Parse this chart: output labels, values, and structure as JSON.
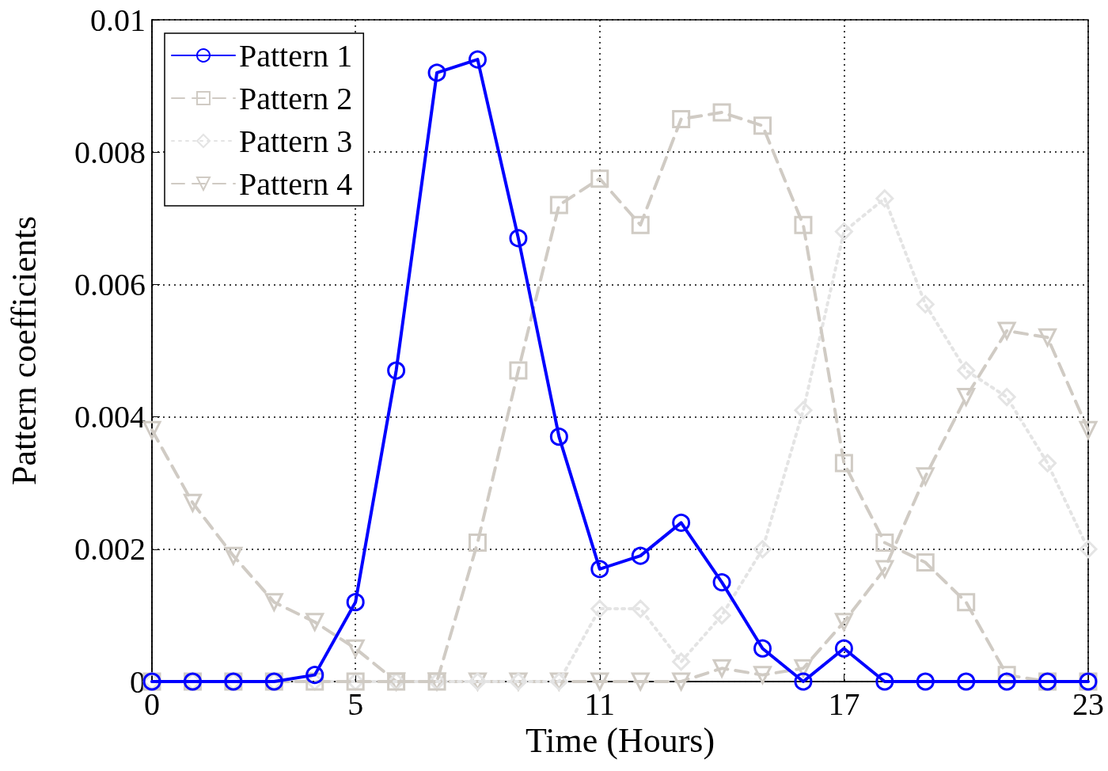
{
  "chart_data": {
    "type": "line",
    "xlabel": "Time (Hours)",
    "ylabel": "Pattern coefficients",
    "x": [
      0,
      1,
      2,
      3,
      4,
      5,
      6,
      7,
      8,
      9,
      10,
      11,
      12,
      13,
      14,
      15,
      16,
      17,
      18,
      19,
      20,
      21,
      22,
      23
    ],
    "xlim": [
      0,
      23
    ],
    "xticks": [
      0,
      5,
      11,
      17,
      23
    ],
    "ylim": [
      0,
      0.01
    ],
    "yticks": [
      0,
      0.002,
      0.004,
      0.006,
      0.008,
      0.01
    ],
    "grid": true,
    "legend": "top left",
    "series": [
      {
        "name": "Pattern 1",
        "color": "#0000ff",
        "marker": "circle",
        "line_style": "solid",
        "values": [
          0,
          0,
          0,
          0,
          0.0001,
          0.0012,
          0.0047,
          0.0092,
          0.0094,
          0.0067,
          0.0037,
          0.0017,
          0.0019,
          0.0024,
          0.0015,
          0.0005,
          0,
          0.0005,
          0,
          0,
          0,
          0,
          0,
          0
        ]
      },
      {
        "name": "Pattern 2",
        "color": "#d0cbc4",
        "marker": "square",
        "line_style": "dashed",
        "values": [
          0,
          0,
          0,
          0,
          0,
          0,
          0,
          0,
          0.0021,
          0.0047,
          0.0072,
          0.0076,
          0.0069,
          0.0085,
          0.0086,
          0.0084,
          0.0069,
          0.0033,
          0.0021,
          0.0018,
          0.0012,
          0.0001,
          0,
          0
        ]
      },
      {
        "name": "Pattern 3",
        "color": "#e4e4e4",
        "marker": "diamond",
        "line_style": "dotted",
        "values": [
          0,
          0,
          0,
          0,
          0,
          0,
          0,
          0,
          0,
          0,
          0,
          0.0011,
          0.0011,
          0.0003,
          0.001,
          0.002,
          0.0041,
          0.0068,
          0.0073,
          0.0057,
          0.0047,
          0.0043,
          0.0033,
          0.002
        ]
      },
      {
        "name": "Pattern 4",
        "color": "#d0cbc4",
        "marker": "triangle",
        "line_style": "dashed",
        "values": [
          0.0038,
          0.0027,
          0.0019,
          0.0012,
          0.0009,
          0.0005,
          0,
          0,
          0,
          0,
          0,
          0,
          0,
          0,
          0.0002,
          0.0001,
          0.0002,
          0.0009,
          0.0017,
          0.0031,
          0.0043,
          0.0053,
          0.0052,
          0.0038
        ]
      }
    ]
  }
}
